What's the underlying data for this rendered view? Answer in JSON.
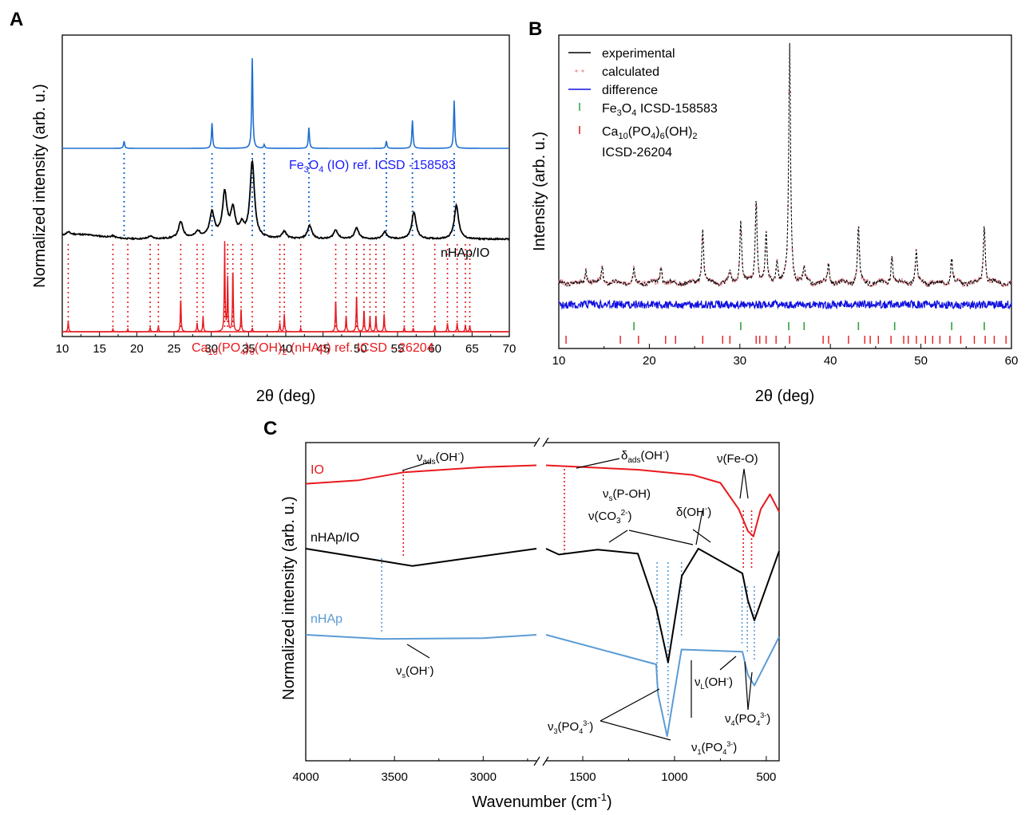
{
  "panels": {
    "A": {
      "letter": "A",
      "xlabel": "2θ (deg)",
      "ylabel": "Normalized intensity (arb. u.)",
      "xlim": [
        10,
        70
      ],
      "xticks": [
        "10",
        "15",
        "20",
        "25",
        "30",
        "35",
        "40",
        "45",
        "50",
        "55",
        "60",
        "65",
        "70"
      ],
      "trace_labels": {
        "fe3o4_ref": "Fe3O4 (IO) ref. ICSD -158583",
        "composite": "nHAp/IO",
        "hap_ref": "Ca10(PO4)6(OH)2 (nHAp) ref. ICSD - 26204"
      }
    },
    "B": {
      "letter": "B",
      "xlabel": "2θ (deg)",
      "ylabel": "Intensity (arb. u.)",
      "xlim": [
        10,
        60
      ],
      "xticks": [
        "10",
        "20",
        "30",
        "40",
        "50",
        "60"
      ],
      "legend": {
        "experimental": "experimental",
        "calculated": "calculated",
        "difference": "difference",
        "fe3o4": "Fe3O4 ICSD-158583",
        "hap_line1": "Ca10(PO4)6(OH)2",
        "hap_line2": "ICSD-26204"
      }
    },
    "C": {
      "letter": "C",
      "xlabel": "Wavenumber (cm-1)",
      "ylabel": "Normalized intensity (arb. u.)",
      "xticks": [
        "4000",
        "3500",
        "3000",
        "1500",
        "1000",
        "500"
      ],
      "trace_labels": {
        "io": "IO",
        "composite": "nHAp/IO",
        "hap": "nHAp"
      },
      "annotations": {
        "nu_ads_oh": "νads(OH-)",
        "delta_ads_oh": "δads(OH-)",
        "nu_s_poh": "νs(P-OH)",
        "nu_co3": "ν(CO32-)",
        "delta_oh": "δ(OH-)",
        "nu_feo": "ν(Fe-O)",
        "nu_s_oh": "νs(OH-)",
        "nu3_po4": "ν3(PO43-)",
        "nu1_po4": "ν1(PO43-)",
        "nu_l_oh": "νL(OH-)",
        "nu4_po4": "ν4(PO43-)"
      }
    }
  },
  "colors": {
    "fe3o4_blue": "#1f6fd1",
    "label_blue": "#1a1aff",
    "composite_black": "#000000",
    "hap_red": "#e8191e",
    "calc_pink": "#f4a0a8",
    "diff_blue": "#1010e0",
    "fe_tick_green": "#2ea043",
    "ftir_io_red": "#e8191e",
    "ftir_hap_blue": "#5b9bd5"
  },
  "chart_data": [
    {
      "panel": "A",
      "type": "line",
      "title": "",
      "xlabel": "2θ (deg)",
      "ylabel": "Normalized intensity (arb. u.)",
      "xlim": [
        10,
        70
      ],
      "series": [
        {
          "name": "Fe3O4 (IO) ref. ICSD -158583",
          "peaks": [
            [
              18.3,
              0.08
            ],
            [
              30.1,
              0.28
            ],
            [
              35.5,
              1.0
            ],
            [
              37.1,
              0.04
            ],
            [
              43.1,
              0.23
            ],
            [
              53.5,
              0.08
            ],
            [
              57.0,
              0.31
            ],
            [
              62.6,
              0.53
            ]
          ]
        },
        {
          "name": "nHAp/IO",
          "peaks": [
            [
              10.8,
              0.03
            ],
            [
              16.8,
              0.02
            ],
            [
              21.8,
              0.03
            ],
            [
              25.9,
              0.18
            ],
            [
              28.2,
              0.06
            ],
            [
              30.1,
              0.27
            ],
            [
              31.8,
              0.48
            ],
            [
              32.9,
              0.3
            ],
            [
              34.1,
              0.12
            ],
            [
              35.5,
              0.85
            ],
            [
              39.8,
              0.08
            ],
            [
              43.2,
              0.15
            ],
            [
              46.7,
              0.1
            ],
            [
              49.5,
              0.12
            ],
            [
              53.3,
              0.08
            ],
            [
              57.2,
              0.3
            ],
            [
              62.9,
              0.38
            ]
          ]
        },
        {
          "name": "Ca10(PO4)6(OH)2 (nHAp) ref. ICSD - 26204",
          "peaks": [
            [
              10.8,
              0.12
            ],
            [
              16.8,
              0.03
            ],
            [
              18.8,
              0.03
            ],
            [
              21.8,
              0.05
            ],
            [
              22.9,
              0.06
            ],
            [
              25.9,
              0.38
            ],
            [
              28.1,
              0.1
            ],
            [
              28.9,
              0.17
            ],
            [
              31.8,
              1.0
            ],
            [
              32.2,
              0.6
            ],
            [
              32.9,
              0.72
            ],
            [
              34.0,
              0.25
            ],
            [
              35.5,
              0.04
            ],
            [
              39.2,
              0.1
            ],
            [
              39.8,
              0.2
            ],
            [
              42.0,
              0.04
            ],
            [
              46.7,
              0.36
            ],
            [
              48.1,
              0.18
            ],
            [
              49.5,
              0.42
            ],
            [
              50.5,
              0.25
            ],
            [
              51.3,
              0.18
            ],
            [
              52.1,
              0.18
            ],
            [
              53.2,
              0.2
            ],
            [
              55.9,
              0.05
            ],
            [
              57.1,
              0.04
            ],
            [
              60.0,
              0.07
            ],
            [
              61.7,
              0.1
            ],
            [
              63.0,
              0.1
            ],
            [
              64.1,
              0.08
            ],
            [
              64.7,
              0.07
            ]
          ]
        }
      ]
    },
    {
      "panel": "B",
      "type": "line",
      "title": "",
      "xlabel": "2θ (deg)",
      "ylabel": "Intensity (arb. u.)",
      "xlim": [
        10,
        60
      ],
      "series": [
        {
          "name": "experimental",
          "peaks": [
            [
              13.0,
              0.06
            ],
            [
              14.8,
              0.07
            ],
            [
              18.3,
              0.06
            ],
            [
              21.3,
              0.08
            ],
            [
              25.9,
              0.23
            ],
            [
              28.9,
              0.05
            ],
            [
              30.1,
              0.27
            ],
            [
              31.8,
              0.36
            ],
            [
              32.9,
              0.2
            ],
            [
              34.1,
              0.1
            ],
            [
              35.5,
              1.0
            ],
            [
              37.1,
              0.06
            ],
            [
              39.8,
              0.08
            ],
            [
              43.1,
              0.24
            ],
            [
              46.8,
              0.12
            ],
            [
              49.5,
              0.13
            ],
            [
              53.4,
              0.1
            ],
            [
              57.0,
              0.25
            ]
          ]
        },
        {
          "name": "calculated",
          "same_as": "experimental"
        },
        {
          "name": "difference",
          "baseline": 0
        }
      ],
      "reflection_markers": {
        "Fe3O4 ICSD-158583": [
          18.3,
          30.1,
          35.4,
          37.1,
          43.1,
          47.1,
          53.4,
          57.0
        ],
        "Ca10(PO4)6(OH)2 ICSD-26204": [
          10.8,
          16.8,
          18.8,
          21.8,
          22.9,
          25.9,
          28.1,
          28.9,
          31.8,
          32.2,
          32.9,
          34.0,
          35.5,
          39.2,
          39.8,
          42.0,
          43.8,
          44.4,
          45.3,
          46.7,
          48.1,
          48.6,
          49.5,
          50.5,
          51.3,
          52.1,
          53.2,
          54.4,
          55.9,
          57.1,
          58.1,
          59.4
        ]
      }
    },
    {
      "panel": "C",
      "type": "line",
      "title": "",
      "xlabel": "Wavenumber (cm-1)",
      "ylabel": "Normalized intensity (arb. u.)",
      "x_segments": [
        [
          4000,
          2700
        ],
        [
          1700,
          430
        ]
      ],
      "series": [
        {
          "name": "IO",
          "points": [
            [
              4000,
              0.74
            ],
            [
              3700,
              0.78
            ],
            [
              3450,
              0.87
            ],
            [
              3000,
              0.93
            ],
            [
              2700,
              0.95
            ],
            [
              1700,
              0.95
            ],
            [
              1200,
              0.9
            ],
            [
              900,
              0.84
            ],
            [
              750,
              0.75
            ],
            [
              650,
              0.45
            ],
            [
              600,
              0.2
            ],
            [
              570,
              0.14
            ],
            [
              530,
              0.45
            ],
            [
              480,
              0.62
            ],
            [
              430,
              0.42
            ]
          ]
        },
        {
          "name": "nHAp/IO",
          "points": [
            [
              4000,
              0.0
            ],
            [
              3570,
              -0.25
            ],
            [
              3400,
              -0.35
            ],
            [
              3100,
              -0.2
            ],
            [
              2700,
              0.0
            ],
            [
              1700,
              0.0
            ],
            [
              1630,
              -0.12
            ],
            [
              1420,
              -0.02
            ],
            [
              1200,
              -0.1
            ],
            [
              1100,
              -1.2
            ],
            [
              1035,
              -2.3
            ],
            [
              960,
              -0.55
            ],
            [
              870,
              0.0
            ],
            [
              630,
              -0.5
            ],
            [
              600,
              -1.05
            ],
            [
              565,
              -1.45
            ],
            [
              430,
              -0.05
            ]
          ]
        },
        {
          "name": "nHAp",
          "points": [
            [
              4000,
              0.0
            ],
            [
              3570,
              -0.1
            ],
            [
              3000,
              -0.08
            ],
            [
              2700,
              0.0
            ],
            [
              1700,
              0.0
            ],
            [
              1100,
              -0.7
            ],
            [
              1090,
              -1.4
            ],
            [
              1040,
              -2.4
            ],
            [
              962,
              -0.35
            ],
            [
              630,
              -0.4
            ],
            [
              600,
              -0.95
            ],
            [
              565,
              -1.2
            ],
            [
              430,
              -0.05
            ]
          ]
        }
      ]
    }
  ]
}
